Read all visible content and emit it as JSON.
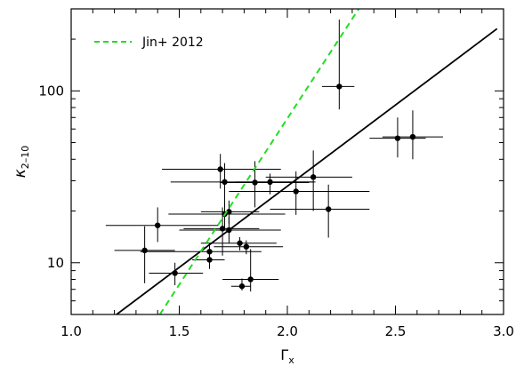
{
  "chart_data": {
    "type": "scatter",
    "xlabel": "Γx",
    "ylabel": "κ2–10",
    "xlim": [
      1.0,
      3.0
    ],
    "ylim": [
      5,
      300
    ],
    "y_scale": "log",
    "x_ticks": [
      1.0,
      1.5,
      2.0,
      2.5,
      3.0
    ],
    "x_tick_labels": [
      "1.0",
      "1.5",
      "2.0",
      "2.5",
      "3.0"
    ],
    "y_ticks": [
      10,
      100
    ],
    "y_tick_labels": [
      "10",
      "100"
    ],
    "grid": false,
    "legend_position": "top-left",
    "series": [
      {
        "kind": "points_with_errorbars",
        "color": "#000000",
        "points": [
          {
            "x": 1.34,
            "y": 11.8,
            "xerr": [
              1.2,
              1.48
            ],
            "yerr": [
              7.6,
              16.3
            ]
          },
          {
            "x": 1.4,
            "y": 16.5,
            "xerr": [
              1.16,
              1.68
            ],
            "yerr": [
              13.2,
              21.0
            ]
          },
          {
            "x": 1.48,
            "y": 8.7,
            "xerr": [
              1.36,
              1.61
            ],
            "yerr": [
              7.4,
              10.0
            ]
          },
          {
            "x": 1.64,
            "y": 10.4,
            "xerr": [
              1.56,
              1.71
            ],
            "yerr": [
              9.2,
              11.3
            ]
          },
          {
            "x": 1.64,
            "y": 11.6,
            "xerr": [
              1.32,
              1.88
            ],
            "yerr": [
              10.3,
              13.0
            ]
          },
          {
            "x": 1.69,
            "y": 35.0,
            "xerr": [
              1.42,
              1.97
            ],
            "yerr": [
              27.0,
              43.0
            ]
          },
          {
            "x": 1.71,
            "y": 29.5,
            "xerr": [
              1.46,
              2.12
            ],
            "yerr": [
              21.0,
              38.0
            ]
          },
          {
            "x": 1.7,
            "y": 15.8,
            "xerr": [
              1.52,
              1.87
            ],
            "yerr": [
              11.0,
              21.0
            ]
          },
          {
            "x": 1.71,
            "y": 19.2,
            "xerr": [
              1.45,
              1.99
            ],
            "yerr": [
              16.0,
              22.0
            ]
          },
          {
            "x": 1.73,
            "y": 19.8,
            "xerr": [
              1.6,
              1.87
            ],
            "yerr": [
              16.8,
              23.0
            ]
          },
          {
            "x": 1.73,
            "y": 15.5,
            "xerr": [
              1.5,
              1.97
            ],
            "yerr": [
              13.0,
              18.5
            ]
          },
          {
            "x": 1.78,
            "y": 13.0,
            "xerr": [
              1.6,
              1.95
            ],
            "yerr": [
              11.8,
              14.1
            ]
          },
          {
            "x": 1.79,
            "y": 7.3,
            "xerr": [
              1.74,
              1.83
            ],
            "yerr": [
              6.9,
              8.1
            ]
          },
          {
            "x": 1.81,
            "y": 12.4,
            "xerr": [
              1.66,
              1.98
            ],
            "yerr": [
              11.2,
              13.5
            ]
          },
          {
            "x": 1.83,
            "y": 8.0,
            "xerr": [
              1.7,
              1.96
            ],
            "yerr": [
              6.8,
              12.0
            ]
          },
          {
            "x": 1.85,
            "y": 29.3,
            "xerr": [
              1.69,
              2.1
            ],
            "yerr": [
              21.0,
              39.0
            ]
          },
          {
            "x": 1.92,
            "y": 29.5,
            "xerr": [
              1.76,
              2.13
            ],
            "yerr": [
              25.0,
              33.0
            ]
          },
          {
            "x": 2.04,
            "y": 26.0,
            "xerr": [
              1.73,
              2.38
            ],
            "yerr": [
              19.0,
              34.0
            ]
          },
          {
            "x": 2.12,
            "y": 31.5,
            "xerr": [
              1.9,
              2.3
            ],
            "yerr": [
              20.0,
              45.0
            ]
          },
          {
            "x": 2.19,
            "y": 20.5,
            "xerr": [
              1.92,
              2.38
            ],
            "yerr": [
              14.0,
              28.5
            ]
          },
          {
            "x": 2.24,
            "y": 106,
            "xerr": [
              2.16,
              2.31
            ],
            "yerr": [
              78,
              260
            ]
          },
          {
            "x": 2.51,
            "y": 53,
            "xerr": [
              2.38,
              2.64
            ],
            "yerr": [
              41,
              70
            ]
          },
          {
            "x": 2.58,
            "y": 54,
            "xerr": [
              2.44,
              2.72
            ],
            "yerr": [
              40,
              77
            ]
          }
        ]
      },
      {
        "kind": "line",
        "color": "#000000",
        "points": [
          {
            "x": 1.21,
            "y": 5.0
          },
          {
            "x": 2.97,
            "y": 230
          }
        ]
      },
      {
        "kind": "dashed_line",
        "name": "Jin+ 2012",
        "color": "#22dd22",
        "points": [
          {
            "x": 1.41,
            "y": 5.0
          },
          {
            "x": 2.33,
            "y": 300
          }
        ]
      }
    ]
  }
}
